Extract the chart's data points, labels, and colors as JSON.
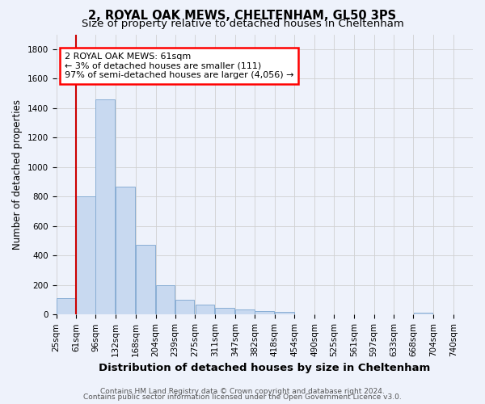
{
  "title1": "2, ROYAL OAK MEWS, CHELTENHAM, GL50 3PS",
  "title2": "Size of property relative to detached houses in Cheltenham",
  "xlabel": "Distribution of detached houses by size in Cheltenham",
  "ylabel": "Number of detached properties",
  "footer1": "Contains HM Land Registry data © Crown copyright and database right 2024.",
  "footer2": "Contains public sector information licensed under the Open Government Licence v3.0.",
  "annotation_line1": "2 ROYAL OAK MEWS: 61sqm",
  "annotation_line2": "← 3% of detached houses are smaller (111)",
  "annotation_line3": "97% of semi-detached houses are larger (4,056) →",
  "bar_color": "#c8d9f0",
  "bar_edge_color": "#89aed4",
  "red_line_color": "#cc0000",
  "categories": [
    "25sqm",
    "61sqm",
    "96sqm",
    "132sqm",
    "168sqm",
    "204sqm",
    "239sqm",
    "275sqm",
    "311sqm",
    "347sqm",
    "382sqm",
    "418sqm",
    "454sqm",
    "490sqm",
    "525sqm",
    "561sqm",
    "597sqm",
    "633sqm",
    "668sqm",
    "704sqm",
    "740sqm"
  ],
  "bin_left_edges": [
    25,
    61,
    96,
    132,
    168,
    204,
    239,
    275,
    311,
    347,
    382,
    418,
    454,
    490,
    525,
    561,
    597,
    633,
    668,
    704,
    740
  ],
  "bin_width": 35,
  "values": [
    110,
    800,
    1460,
    865,
    475,
    200,
    100,
    65,
    45,
    35,
    25,
    20,
    0,
    0,
    0,
    0,
    0,
    0,
    15,
    0,
    0
  ],
  "red_line_x": 61,
  "ylim": [
    0,
    1900
  ],
  "yticks": [
    0,
    200,
    400,
    600,
    800,
    1000,
    1200,
    1400,
    1600,
    1800
  ],
  "background_color": "#eef2fb",
  "grid_color": "#d0d0d0",
  "title1_fontsize": 10.5,
  "title2_fontsize": 9.5,
  "xlabel_fontsize": 9,
  "ylabel_fontsize": 8.5,
  "tick_fontsize": 7.5,
  "ann_fontsize": 8,
  "footer_fontsize": 6.5
}
